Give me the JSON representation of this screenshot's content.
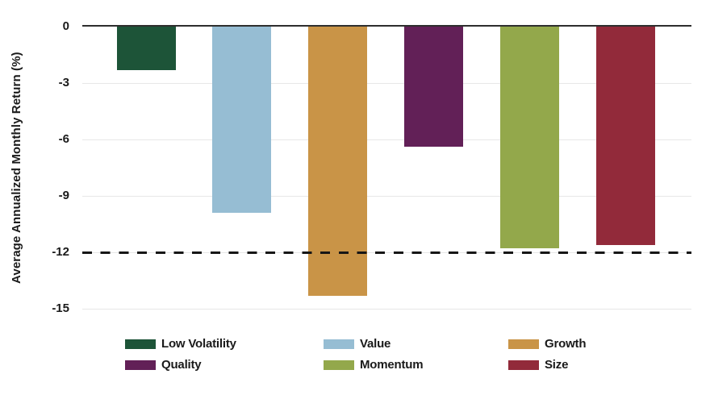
{
  "chart_data": {
    "type": "bar",
    "title": "",
    "xlabel": "",
    "ylabel": "Average Annualized Monthly Return (%)",
    "categories": [
      "Low Volatility",
      "Value",
      "Growth",
      "Quality",
      "Momentum",
      "Size"
    ],
    "values": [
      -2.3,
      -9.9,
      -14.3,
      -6.4,
      -11.8,
      -11.6
    ],
    "colors": [
      "#1d5438",
      "#96bdd3",
      "#c99447",
      "#622057",
      "#93a84b",
      "#922a3a"
    ],
    "ylim": [
      -15,
      0
    ],
    "yticks": [
      0,
      -3,
      -6,
      -9,
      -12,
      -15
    ],
    "ytick_labels": [
      "0",
      "-3",
      "-6",
      "-9",
      "-12",
      "-15"
    ],
    "grid": "horizontal-light",
    "gridline_color": "#e7e7e7",
    "zero_line_color": "#2e2e2e",
    "reference_line": {
      "value": -12,
      "style": "dashed",
      "color": "#161616"
    },
    "legend": {
      "position": "bottom",
      "entries": [
        {
          "label": "Low Volatility",
          "color": "#1d5438"
        },
        {
          "label": "Value",
          "color": "#96bdd3"
        },
        {
          "label": "Growth",
          "color": "#c99447"
        },
        {
          "label": "Quality",
          "color": "#622057"
        },
        {
          "label": "Momentum",
          "color": "#93a84b"
        },
        {
          "label": "Size",
          "color": "#922a3a"
        }
      ]
    },
    "background": "#ffffff"
  }
}
